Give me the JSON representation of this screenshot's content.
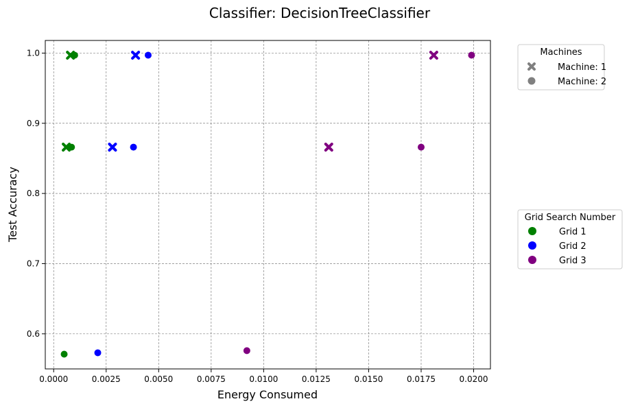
{
  "chart_data": {
    "type": "scatter",
    "title": "Classifier: DecisionTreeClassifier",
    "xlabel": "Energy Consumed",
    "ylabel": "Test Accuracy",
    "xlim": [
      -0.0004,
      0.0208
    ],
    "ylim": [
      0.55,
      1.018
    ],
    "xticks": [
      0.0,
      0.0025,
      0.005,
      0.0075,
      0.01,
      0.0125,
      0.015,
      0.0175,
      0.02
    ],
    "xtick_labels": [
      "0.0000",
      "0.0025",
      "0.0050",
      "0.0075",
      "0.0100",
      "0.0125",
      "0.0150",
      "0.0175",
      "0.0200"
    ],
    "yticks": [
      0.6,
      0.7,
      0.8,
      0.9,
      1.0
    ],
    "ytick_labels": [
      "0.6",
      "0.7",
      "0.8",
      "0.9",
      "1.0"
    ],
    "grid": true,
    "legend_machines": {
      "title": "Machines",
      "placement": "upper-right-outside",
      "entries": [
        {
          "label": "Machine: 1",
          "marker": "x"
        },
        {
          "label": "Machine: 2",
          "marker": "circle"
        }
      ],
      "color": "#808080"
    },
    "legend_grids": {
      "title": "Grid Search Number",
      "placement": "center-right-outside",
      "entries": [
        {
          "label": "Grid 1",
          "color": "#008000"
        },
        {
          "label": "Grid 2",
          "color": "#0000ff"
        },
        {
          "label": "Grid 3",
          "color": "#800080"
        }
      ]
    },
    "series": [
      {
        "grid": "Grid 1",
        "machine": "Machine: 1",
        "color": "#008000",
        "marker": "x",
        "points": [
          [
            0.0008,
            0.997
          ],
          [
            0.0006,
            0.866
          ]
        ]
      },
      {
        "grid": "Grid 1",
        "machine": "Machine: 2",
        "color": "#008000",
        "marker": "circle",
        "points": [
          [
            0.001,
            0.997
          ],
          [
            0.00085,
            0.866
          ],
          [
            0.0005,
            0.571
          ]
        ]
      },
      {
        "grid": "Grid 2",
        "machine": "Machine: 1",
        "color": "#0000ff",
        "marker": "x",
        "points": [
          [
            0.0039,
            0.997
          ],
          [
            0.0028,
            0.866
          ]
        ]
      },
      {
        "grid": "Grid 2",
        "machine": "Machine: 2",
        "color": "#0000ff",
        "marker": "circle",
        "points": [
          [
            0.0045,
            0.997
          ],
          [
            0.0038,
            0.866
          ],
          [
            0.0021,
            0.573
          ]
        ]
      },
      {
        "grid": "Grid 3",
        "machine": "Machine: 1",
        "color": "#800080",
        "marker": "x",
        "points": [
          [
            0.0181,
            0.997
          ],
          [
            0.0131,
            0.866
          ]
        ]
      },
      {
        "grid": "Grid 3",
        "machine": "Machine: 2",
        "color": "#800080",
        "marker": "circle",
        "points": [
          [
            0.0199,
            0.997
          ],
          [
            0.0175,
            0.866
          ],
          [
            0.0092,
            0.576
          ]
        ]
      }
    ]
  }
}
